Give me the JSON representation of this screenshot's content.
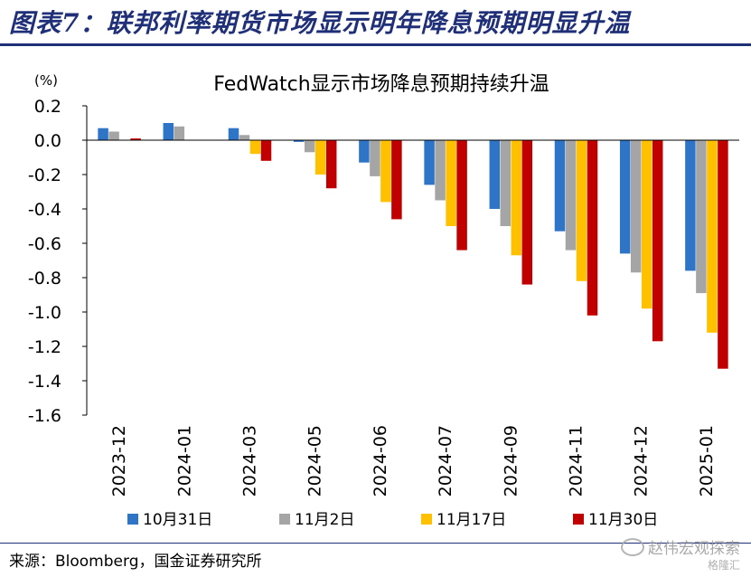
{
  "figure_title": "图表7：联邦利率期货市场显示明年降息预期明显升温",
  "source": "来源：Bloomberg，国金证券研究所",
  "watermark": {
    "text": "赵伟宏观探索",
    "sub": "格隆汇",
    "icon": "wechat-icon"
  },
  "chart_data": {
    "type": "bar",
    "title": "FedWatch显示市场降息预期持续升温",
    "unit_label": "(%)",
    "categories": [
      "2023-12",
      "2024-01",
      "2024-03",
      "2024-05",
      "2024-06",
      "2024-07",
      "2024-09",
      "2024-11",
      "2024-12",
      "2025-01"
    ],
    "series": [
      {
        "name": "10月31日",
        "color": "#2e75c8",
        "values": [
          0.07,
          0.1,
          0.07,
          -0.01,
          -0.13,
          -0.26,
          -0.4,
          -0.53,
          -0.66,
          -0.76
        ]
      },
      {
        "name": "11月2日",
        "color": "#a5a5a5",
        "values": [
          0.05,
          0.08,
          0.03,
          -0.07,
          -0.21,
          -0.35,
          -0.5,
          -0.64,
          -0.77,
          -0.89
        ]
      },
      {
        "name": "11月17日",
        "color": "#ffc000",
        "values": [
          0.0,
          0.0,
          -0.08,
          -0.2,
          -0.36,
          -0.5,
          -0.67,
          -0.82,
          -0.98,
          -1.12
        ]
      },
      {
        "name": "11月30日",
        "color": "#c00000",
        "values": [
          0.01,
          0.0,
          -0.12,
          -0.28,
          -0.46,
          -0.64,
          -0.84,
          -1.02,
          -1.17,
          -1.33
        ]
      }
    ],
    "ylim": [
      -1.6,
      0.2
    ],
    "yticks": [
      0.2,
      0.0,
      -0.2,
      -0.4,
      -0.6,
      -0.8,
      -1.0,
      -1.2,
      -1.4,
      -1.6
    ],
    "grid": false,
    "legend_position": "bottom"
  }
}
